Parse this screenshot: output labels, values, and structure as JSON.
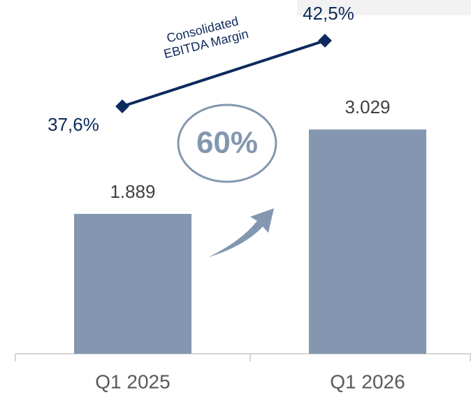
{
  "chart_data": {
    "type": "bar",
    "categories": [
      "Q1 2025",
      "Q1 2026"
    ],
    "series": [
      {
        "type": "bar",
        "color": "#8497b0",
        "values": [
          1889,
          3029
        ],
        "value_labels": [
          "1.889",
          "3.029"
        ]
      },
      {
        "type": "line",
        "name": "Consolidated EBITDA Margin",
        "color": "#0d2a5c",
        "values": [
          37.6,
          42.5
        ],
        "value_labels": [
          "37,6%",
          "42,5%"
        ]
      }
    ],
    "annotations": [
      "60%"
    ]
  }
}
